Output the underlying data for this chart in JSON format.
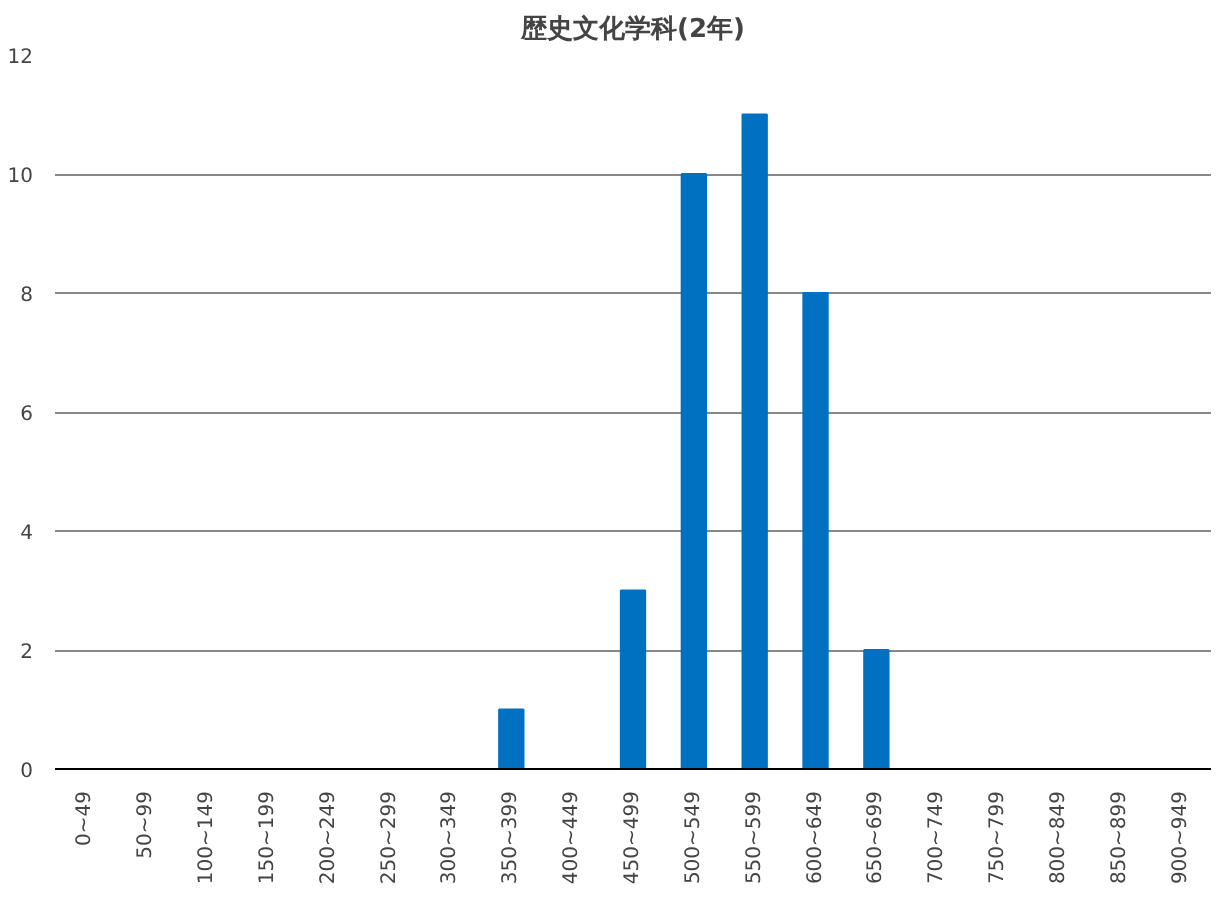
{
  "chart_data": {
    "type": "bar",
    "title": "歴史文化学科(2年)",
    "categories": [
      "0~49",
      "50~99",
      "100~149",
      "150~199",
      "200~249",
      "250~299",
      "300~349",
      "350~399",
      "400~449",
      "450~499",
      "500~549",
      "550~599",
      "600~649",
      "650~699",
      "700~749",
      "750~799",
      "800~849",
      "850~899",
      "900~949"
    ],
    "values": [
      0,
      0,
      0,
      0,
      0,
      0,
      0,
      1,
      0,
      3,
      10,
      11,
      8,
      2,
      0,
      0,
      0,
      0,
      0
    ],
    "color": "#0070c0",
    "ylim": [
      0,
      12
    ],
    "yticks": [
      0,
      2,
      4,
      6,
      8,
      10,
      12
    ],
    "grid": "y"
  }
}
